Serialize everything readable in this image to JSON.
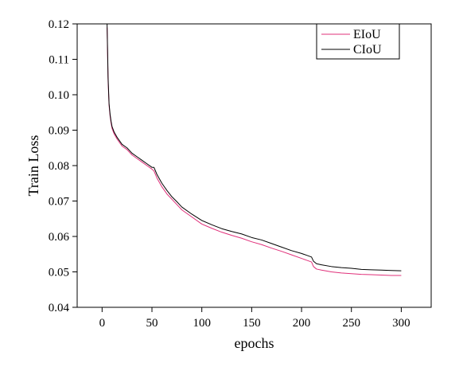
{
  "chart_data": {
    "type": "line",
    "xlabel": "epochs",
    "ylabel": "Train Loss",
    "xlim": [
      -25,
      330
    ],
    "ylim": [
      0.04,
      0.12
    ],
    "xticks": [
      0,
      50,
      100,
      150,
      200,
      250,
      300
    ],
    "yticks": [
      0.04,
      0.05,
      0.06,
      0.07,
      0.08,
      0.09,
      0.1,
      0.11,
      0.12
    ],
    "ytick_labels": [
      "0.04",
      "0.05",
      "0.06",
      "0.07",
      "0.08",
      "0.09",
      "0.10",
      "0.11",
      "0.12"
    ],
    "legend_position": "top-right",
    "grid": false,
    "series": [
      {
        "name": "EIoU",
        "color": "#e0307a",
        "x": [
          5,
          6,
          7,
          8,
          9,
          10,
          12,
          15,
          20,
          25,
          30,
          35,
          40,
          45,
          50,
          52,
          55,
          60,
          65,
          70,
          75,
          80,
          90,
          100,
          110,
          120,
          130,
          140,
          150,
          160,
          170,
          180,
          190,
          200,
          205,
          210,
          212,
          215,
          220,
          230,
          240,
          250,
          260,
          270,
          280,
          290,
          300
        ],
        "values": [
          0.119,
          0.104,
          0.097,
          0.094,
          0.092,
          0.0905,
          0.089,
          0.0875,
          0.0855,
          0.0845,
          0.083,
          0.082,
          0.081,
          0.08,
          0.079,
          0.0785,
          0.0765,
          0.074,
          0.072,
          0.0705,
          0.069,
          0.0675,
          0.0655,
          0.0635,
          0.0623,
          0.0612,
          0.0603,
          0.0595,
          0.0585,
          0.0577,
          0.0567,
          0.0558,
          0.0548,
          0.0538,
          0.0533,
          0.0528,
          0.0515,
          0.0508,
          0.0505,
          0.05,
          0.0497,
          0.0495,
          0.0493,
          0.0492,
          0.0491,
          0.049,
          0.049
        ]
      },
      {
        "name": "CIoU",
        "color": "#000000",
        "x": [
          5,
          6,
          7,
          8,
          9,
          10,
          12,
          15,
          20,
          25,
          30,
          35,
          40,
          45,
          50,
          52,
          55,
          60,
          65,
          70,
          75,
          80,
          90,
          100,
          110,
          120,
          130,
          140,
          150,
          160,
          170,
          180,
          190,
          200,
          205,
          210,
          212,
          215,
          220,
          230,
          240,
          250,
          260,
          270,
          280,
          290,
          300
        ],
        "values": [
          0.12,
          0.105,
          0.0975,
          0.0945,
          0.0925,
          0.091,
          0.0895,
          0.088,
          0.086,
          0.085,
          0.0835,
          0.0825,
          0.0815,
          0.0805,
          0.0795,
          0.0795,
          0.0775,
          0.075,
          0.073,
          0.0712,
          0.0698,
          0.0683,
          0.0663,
          0.0645,
          0.0633,
          0.0622,
          0.0614,
          0.0607,
          0.0597,
          0.059,
          0.058,
          0.057,
          0.056,
          0.0552,
          0.0547,
          0.0542,
          0.053,
          0.0523,
          0.052,
          0.0515,
          0.0512,
          0.051,
          0.0507,
          0.0506,
          0.0505,
          0.0504,
          0.0503
        ]
      }
    ]
  }
}
